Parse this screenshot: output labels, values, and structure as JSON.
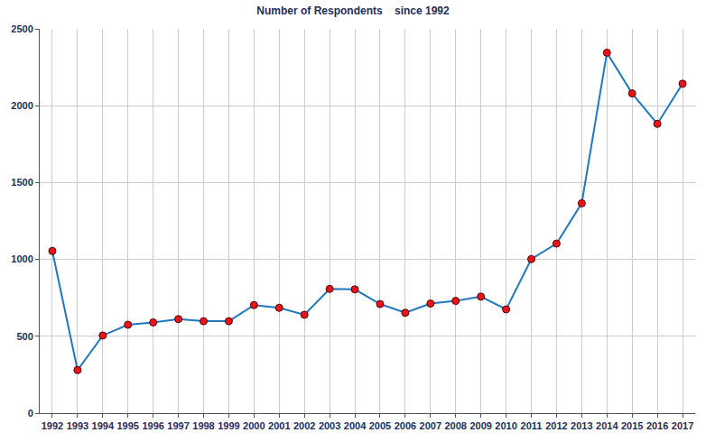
{
  "chart_data": {
    "type": "line",
    "title": "Number of Respondents    since 1992",
    "categories": [
      "1992",
      "1993",
      "1994",
      "1995",
      "1996",
      "1997",
      "1998",
      "1999",
      "2000",
      "2001",
      "2002",
      "2003",
      "2004",
      "2005",
      "2006",
      "2007",
      "2008",
      "2009",
      "2010",
      "2011",
      "2012",
      "2013",
      "2014",
      "2015",
      "2016",
      "2017"
    ],
    "values": [
      1055,
      280,
      505,
      575,
      590,
      612,
      598,
      598,
      703,
      685,
      640,
      808,
      805,
      710,
      653,
      713,
      730,
      758,
      675,
      1002,
      1103,
      1365,
      2345,
      2080,
      1882,
      2143
    ],
    "color": "#1f78c1",
    "marker": "circle",
    "ylim": [
      0,
      2500
    ],
    "yticks": [
      0,
      500,
      1000,
      1500,
      2000,
      2500
    ],
    "grid": true
  }
}
